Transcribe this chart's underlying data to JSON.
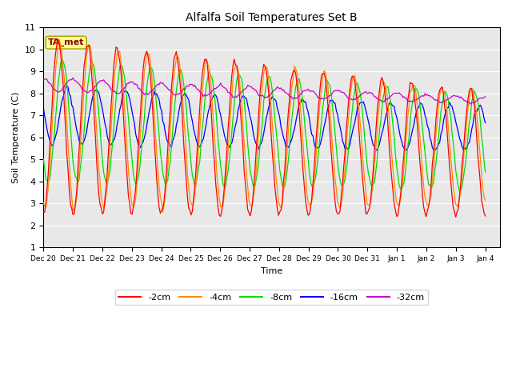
{
  "title": "Alfalfa Soil Temperatures Set B",
  "xlabel": "Time",
  "ylabel": "Soil Temperature (C)",
  "ylim": [
    1.0,
    11.0
  ],
  "yticks": [
    1.0,
    2.0,
    3.0,
    4.0,
    5.0,
    6.0,
    7.0,
    8.0,
    9.0,
    10.0,
    11.0
  ],
  "colors": {
    "-2cm": "#FF0000",
    "-4cm": "#FF8C00",
    "-8cm": "#00DD00",
    "-16cm": "#0000FF",
    "-32cm": "#CC00CC"
  },
  "annotation_text": "TA_met",
  "annotation_bgcolor": "#FFFF99",
  "annotation_edgecolor": "#AAAA00",
  "plot_bgcolor": "#E8E8E8",
  "fig_bgcolor": "#FFFFFF",
  "grid_color": "#FFFFFF",
  "tick_labels": [
    "Dec 20",
    "Dec 21",
    "Dec 22",
    "Dec 23",
    "Dec 24",
    "Dec 25",
    "Dec 26",
    "Dec 27",
    "Dec 28",
    "Dec 29",
    "Dec 30",
    "Dec 31",
    "Jan 1",
    "Jan 2",
    "Jan 3",
    "Jan 4"
  ],
  "n_points": 360,
  "days": 15.0
}
